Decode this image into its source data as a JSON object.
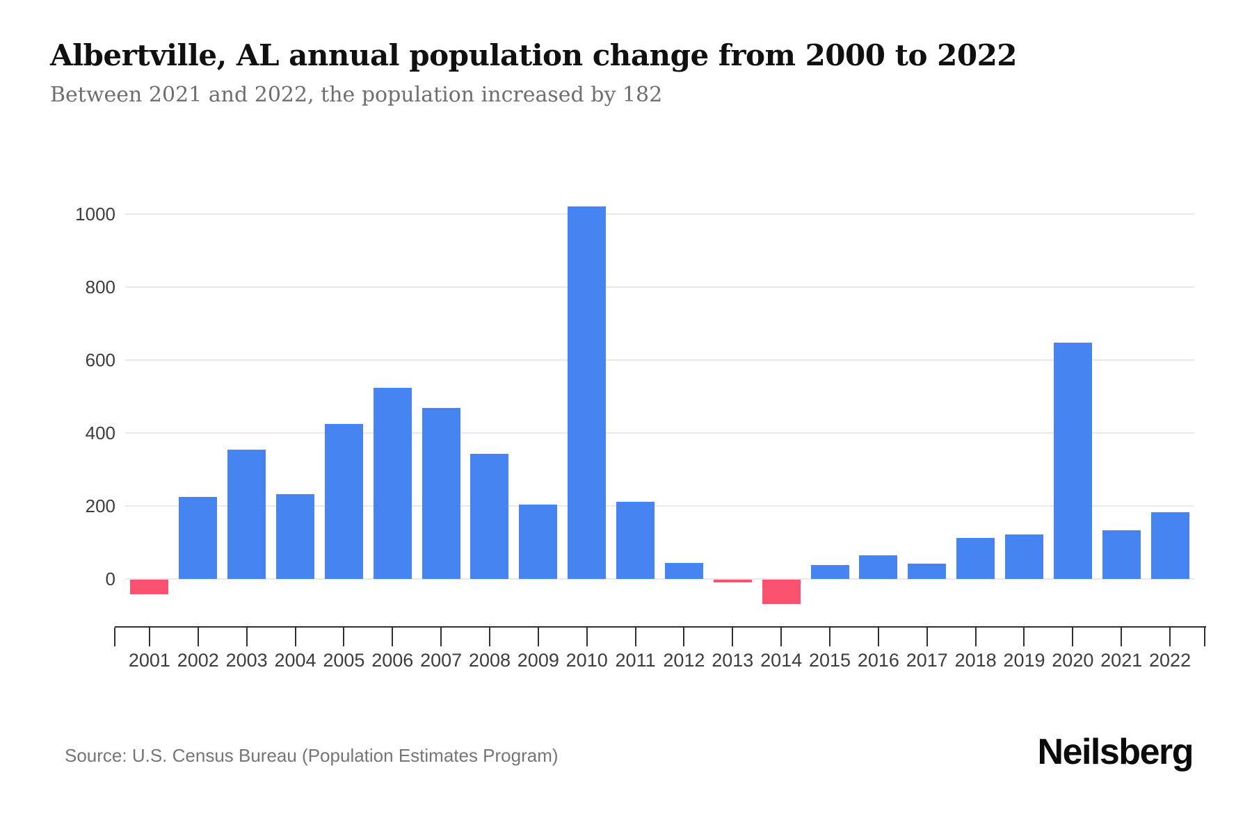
{
  "header": {
    "title": "Albertville, AL annual population change from 2000 to 2022",
    "subtitle": "Between 2021 and 2022, the population increased by 182"
  },
  "footer": {
    "source": "Source: U.S. Census Bureau (Population Estimates Program)",
    "brand": "Neilsberg"
  },
  "chart_data": {
    "type": "bar",
    "title": "Albertville, AL annual population change from 2000 to 2022",
    "subtitle": "Between 2021 and 2022, the population increased by 182",
    "categories": [
      "2001",
      "2002",
      "2003",
      "2004",
      "2005",
      "2006",
      "2007",
      "2008",
      "2009",
      "2010",
      "2011",
      "2012",
      "2013",
      "2014",
      "2015",
      "2016",
      "2017",
      "2018",
      "2019",
      "2020",
      "2021",
      "2022"
    ],
    "values": [
      -40,
      225,
      354,
      233,
      425,
      523,
      469,
      343,
      204,
      1021,
      211,
      44,
      -7,
      -66,
      38,
      65,
      42,
      113,
      121,
      648,
      133,
      182
    ],
    "xlabel": "",
    "ylabel": "",
    "yticks": [
      0,
      200,
      400,
      600,
      800,
      1000
    ],
    "ylim": [
      -100,
      1100
    ],
    "grid": true,
    "legend": "none",
    "colors": {
      "positive": "#4685f1",
      "negative": "#f9516e",
      "gridline": "#e8e8e8",
      "axis": "#2f2f2f",
      "tick_label": "#3d3d3d",
      "title": "#101010",
      "subtitle": "#6e6e6e",
      "source": "#757575"
    }
  }
}
